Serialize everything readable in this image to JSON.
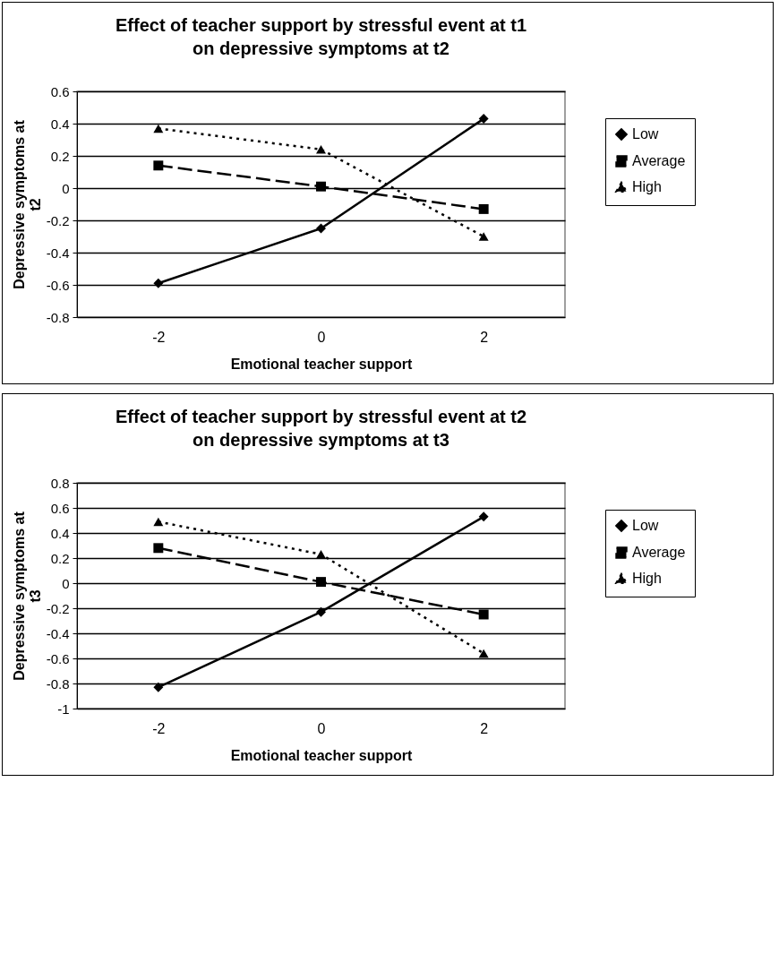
{
  "chart_data": [
    {
      "type": "line",
      "title": "Effect of teacher support by stressful event at t1\non depressive symptoms at t2",
      "xlabel": "Emotional teacher support",
      "ylabel": "Depressive symptoms at t2",
      "categories": [
        "-2",
        "0",
        "2"
      ],
      "ylim": [
        -0.8,
        0.6
      ],
      "yticks": [
        -0.8,
        -0.6,
        -0.4,
        -0.2,
        0,
        0.2,
        0.4,
        0.6
      ],
      "grid": "y",
      "legend": "right",
      "series": [
        {
          "name": "Low",
          "color": "#000000",
          "marker": "diamond",
          "line_style": "solid",
          "values": [
            -0.59,
            -0.25,
            0.43
          ]
        },
        {
          "name": "Average",
          "color": "#000000",
          "marker": "square",
          "line_style": "dashed",
          "values": [
            0.14,
            0.01,
            -0.13
          ]
        },
        {
          "name": "High",
          "color": "#000000",
          "marker": "triangle",
          "line_style": "dotted",
          "values": [
            0.37,
            0.24,
            -0.3
          ]
        }
      ]
    },
    {
      "type": "line",
      "title": "Effect of teacher support by stressful event at t2\non depressive symptoms at t3",
      "xlabel": "Emotional teacher support",
      "ylabel": "Depressive symptoms at t3",
      "categories": [
        "-2",
        "0",
        "2"
      ],
      "ylim": [
        -1,
        0.8
      ],
      "yticks": [
        -1,
        -0.8,
        -0.6,
        -0.4,
        -0.2,
        0,
        0.2,
        0.4,
        0.6,
        0.8
      ],
      "grid": "y",
      "legend": "right",
      "series": [
        {
          "name": "Low",
          "color": "#000000",
          "marker": "diamond",
          "line_style": "solid",
          "values": [
            -0.83,
            -0.23,
            0.53
          ]
        },
        {
          "name": "Average",
          "color": "#000000",
          "marker": "square",
          "line_style": "dashed",
          "values": [
            0.28,
            0.01,
            -0.25
          ]
        },
        {
          "name": "High",
          "color": "#000000",
          "marker": "triangle",
          "line_style": "dotted",
          "values": [
            0.49,
            0.23,
            -0.56
          ]
        }
      ]
    }
  ]
}
